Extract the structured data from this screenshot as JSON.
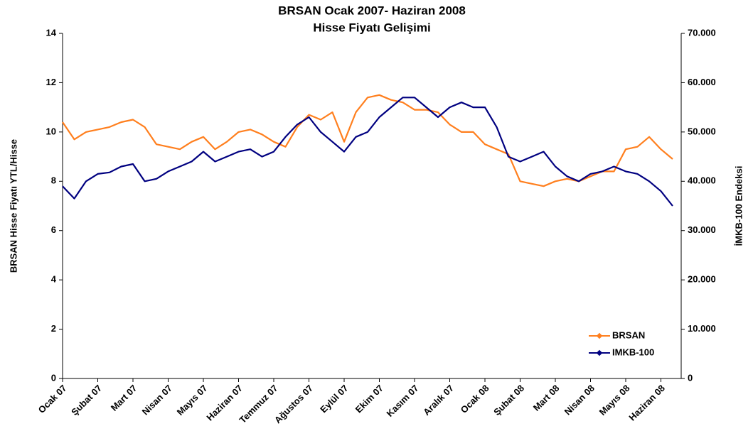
{
  "chart_data": {
    "type": "line",
    "title": "BRSAN Ocak 2007- Haziran 2008",
    "subtitle": "Hisse Fiyatı Gelişimi",
    "y_label": "BRSAN Hisse Fiyatı YTL/Hisse",
    "y2_label": "İMKB-100 Endeksi",
    "categories": [
      "Ocak 07",
      null,
      null,
      "Şubat 07",
      null,
      null,
      "Mart 07",
      null,
      null,
      "Nisan 07",
      null,
      null,
      "Mayıs 07",
      null,
      null,
      "Haziran 07",
      null,
      null,
      "Temmuz 07",
      null,
      null,
      "Ağustos 07",
      null,
      null,
      "Eylül 07",
      null,
      null,
      "Ekim 07",
      null,
      null,
      "Kasım 07",
      null,
      null,
      "Aralık 07",
      null,
      null,
      "Ocak 08",
      null,
      null,
      "Şubat 08",
      null,
      null,
      "Mart 08",
      null,
      null,
      "Nisan 08",
      null,
      null,
      "Mayıs 08",
      null,
      null,
      "Haziran 08",
      null
    ],
    "series": [
      {
        "name": "BRSAN",
        "color": "#ff7f1e",
        "axis": "y",
        "values": [
          10.4,
          9.7,
          10.0,
          10.1,
          10.2,
          10.4,
          10.5,
          10.2,
          9.5,
          9.4,
          9.3,
          9.6,
          9.8,
          9.3,
          9.6,
          10.0,
          10.1,
          9.9,
          9.6,
          9.4,
          10.2,
          10.7,
          10.5,
          10.8,
          9.6,
          10.8,
          11.4,
          11.5,
          11.3,
          11.2,
          10.9,
          10.9,
          10.8,
          10.3,
          10.0,
          10.0,
          9.5,
          9.3,
          9.1,
          8.0,
          7.9,
          7.8,
          8.0,
          8.1,
          8.0,
          8.2,
          8.4,
          8.4,
          9.3,
          9.4,
          9.8,
          9.3,
          8.9
        ]
      },
      {
        "name": "IMKB-100",
        "color": "#000080",
        "axis": "y2",
        "values": [
          39000,
          36500,
          40000,
          41500,
          41800,
          43000,
          43500,
          40000,
          40500,
          42000,
          43000,
          44000,
          46000,
          44000,
          45000,
          46000,
          46500,
          45000,
          46000,
          49000,
          51500,
          53000,
          50000,
          48000,
          46000,
          49000,
          50000,
          53000,
          55000,
          57000,
          57000,
          55000,
          53000,
          55000,
          56000,
          55000,
          55000,
          51000,
          45000,
          44000,
          45000,
          46000,
          43000,
          41000,
          40000,
          41500,
          42000,
          43000,
          42000,
          41500,
          40000,
          38000,
          35000
        ]
      }
    ],
    "ylim": [
      0,
      14
    ],
    "yticks": [
      0,
      2,
      4,
      6,
      8,
      10,
      12,
      14
    ],
    "y2lim": [
      0,
      70000
    ],
    "y2ticks": [
      0,
      {
        "value": 10000,
        "label": "10.000"
      },
      {
        "value": 20000,
        "label": "20.000"
      },
      {
        "value": 30000,
        "label": "30.000"
      },
      {
        "value": 40000,
        "label": "40.000"
      },
      {
        "value": 50000,
        "label": "50.000"
      },
      {
        "value": 60000,
        "label": "60.000"
      },
      {
        "value": 70000,
        "label": "70.000"
      }
    ],
    "legend": "lower right"
  }
}
